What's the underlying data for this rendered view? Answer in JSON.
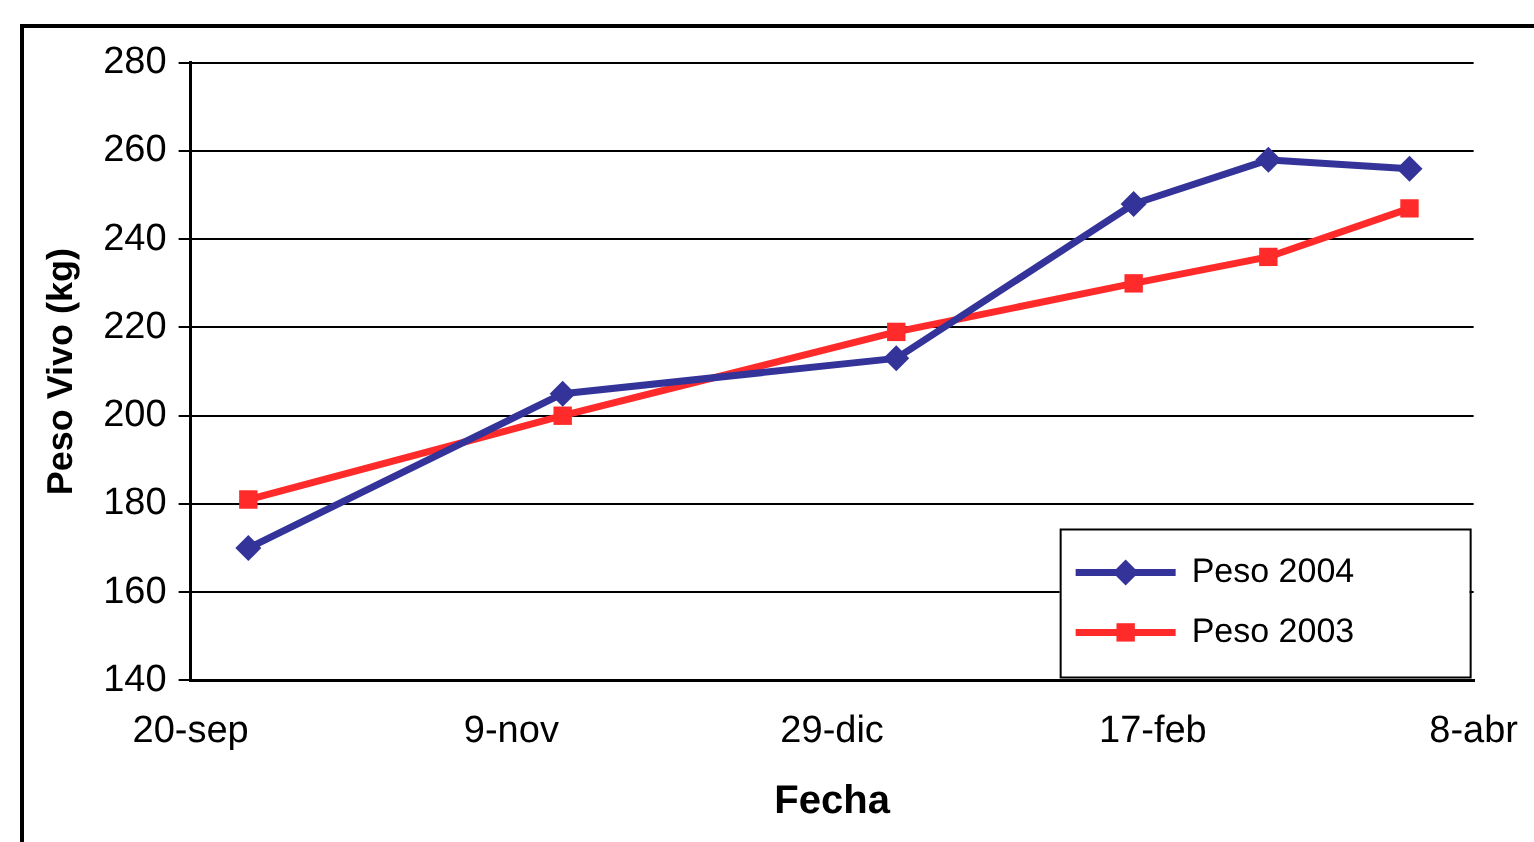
{
  "chart_data": {
    "type": "line",
    "xlabel": "Fecha",
    "ylabel": "Peso Vivo (kg)",
    "x": [
      "2002-09-29",
      "2002-11-17",
      "2003-01-08",
      "2003-02-14",
      "2003-03-07",
      "2003-03-29"
    ],
    "series": [
      {
        "name": "Peso 2004",
        "color": "#333399",
        "marker": "diamond",
        "values": [
          170,
          205,
          213,
          248,
          258,
          256
        ]
      },
      {
        "name": "Peso 2003",
        "color": "#ff2a2a",
        "marker": "square",
        "values": [
          181,
          200,
          219,
          230,
          236,
          247
        ]
      }
    ],
    "xlim": [
      "2002-09-20",
      "2003-04-08"
    ],
    "xticks": [
      {
        "value": "2002-09-20",
        "label": "20-sep"
      },
      {
        "value": "2002-11-09",
        "label": "9-nov"
      },
      {
        "value": "2002-12-29",
        "label": "29-dic"
      },
      {
        "value": "2003-02-17",
        "label": "17-feb"
      },
      {
        "value": "2003-04-08",
        "label": "8-abr"
      }
    ],
    "ylim": [
      140,
      280
    ],
    "yticks": [
      140,
      160,
      180,
      200,
      220,
      240,
      260,
      280
    ],
    "grid": "y",
    "legend": "bottom right",
    "line_style": "solid"
  }
}
